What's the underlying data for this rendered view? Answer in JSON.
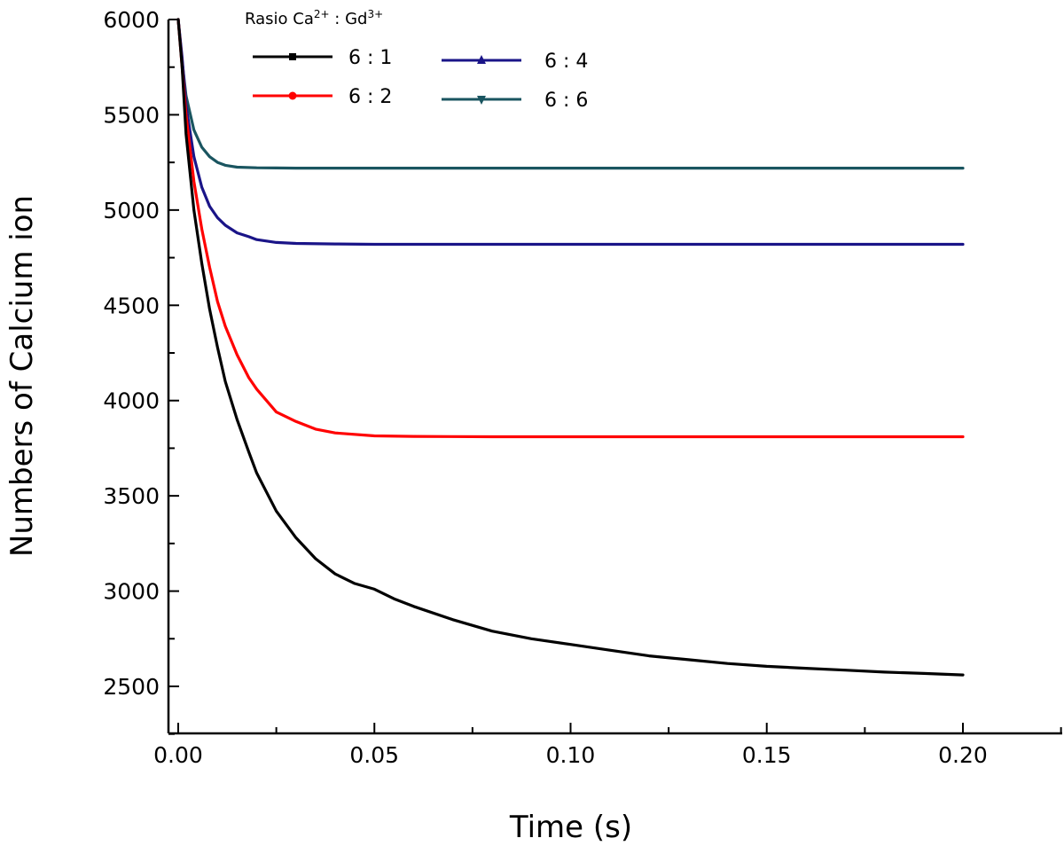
{
  "chart_data": {
    "type": "line",
    "title": "",
    "xlabel": "Time (s)",
    "ylabel": "Numbers of Calcium ion",
    "xlim": [
      0,
      0.225
    ],
    "ylim": [
      2250,
      6000
    ],
    "x_ticks": [
      0.0,
      0.05,
      0.1,
      0.15,
      0.2
    ],
    "x_tick_labels": [
      "0.00",
      "0.05",
      "0.10",
      "0.15",
      "0.20"
    ],
    "y_ticks": [
      2500,
      3000,
      3500,
      4000,
      4500,
      5000,
      5500,
      6000
    ],
    "y_tick_labels": [
      "2500",
      "3000",
      "3500",
      "4000",
      "4500",
      "5000",
      "5500",
      "6000"
    ],
    "grid": false,
    "legend": {
      "title_base": "Rasio Ca",
      "title_sup1": "2+",
      "title_mid": " : Gd",
      "title_sup2": "3+",
      "placement": "top-left"
    },
    "series": [
      {
        "name": "6 : 1",
        "color": "#000000",
        "marker": "square",
        "x": [
          0,
          0.001,
          0.002,
          0.004,
          0.006,
          0.008,
          0.01,
          0.012,
          0.015,
          0.018,
          0.02,
          0.025,
          0.03,
          0.035,
          0.04,
          0.045,
          0.05,
          0.055,
          0.06,
          0.07,
          0.08,
          0.09,
          0.1,
          0.11,
          0.12,
          0.13,
          0.14,
          0.15,
          0.16,
          0.17,
          0.18,
          0.19,
          0.2
        ],
        "values": [
          6000,
          5750,
          5400,
          5000,
          4720,
          4480,
          4280,
          4100,
          3900,
          3730,
          3620,
          3420,
          3280,
          3170,
          3090,
          3040,
          3010,
          2960,
          2920,
          2850,
          2790,
          2750,
          2720,
          2690,
          2660,
          2640,
          2620,
          2605,
          2595,
          2585,
          2575,
          2568,
          2560
        ]
      },
      {
        "name": "6 : 2",
        "color": "#ff0000",
        "marker": "circle",
        "x": [
          0,
          0.001,
          0.002,
          0.004,
          0.006,
          0.008,
          0.01,
          0.012,
          0.015,
          0.018,
          0.02,
          0.025,
          0.03,
          0.035,
          0.04,
          0.05,
          0.06,
          0.08,
          0.1,
          0.15,
          0.2
        ],
        "values": [
          6000,
          5750,
          5500,
          5150,
          4900,
          4700,
          4520,
          4390,
          4240,
          4120,
          4060,
          3940,
          3890,
          3850,
          3830,
          3815,
          3812,
          3810,
          3810,
          3810,
          3810
        ]
      },
      {
        "name": "6 : 4",
        "color": "#1a1488",
        "marker": "triangle-up",
        "x": [
          0,
          0.001,
          0.002,
          0.004,
          0.006,
          0.008,
          0.01,
          0.012,
          0.015,
          0.018,
          0.02,
          0.025,
          0.03,
          0.04,
          0.05,
          0.1,
          0.15,
          0.2
        ],
        "values": [
          6000,
          5800,
          5550,
          5280,
          5120,
          5020,
          4960,
          4920,
          4880,
          4860,
          4845,
          4830,
          4825,
          4822,
          4820,
          4820,
          4820,
          4820
        ]
      },
      {
        "name": "6 : 6",
        "color": "#1a5560",
        "marker": "triangle-down",
        "x": [
          0,
          0.001,
          0.002,
          0.004,
          0.006,
          0.008,
          0.01,
          0.012,
          0.015,
          0.02,
          0.025,
          0.03,
          0.05,
          0.1,
          0.15,
          0.2
        ],
        "values": [
          6000,
          5780,
          5600,
          5420,
          5330,
          5280,
          5250,
          5235,
          5225,
          5222,
          5221,
          5220,
          5220,
          5220,
          5220,
          5220
        ]
      }
    ]
  }
}
